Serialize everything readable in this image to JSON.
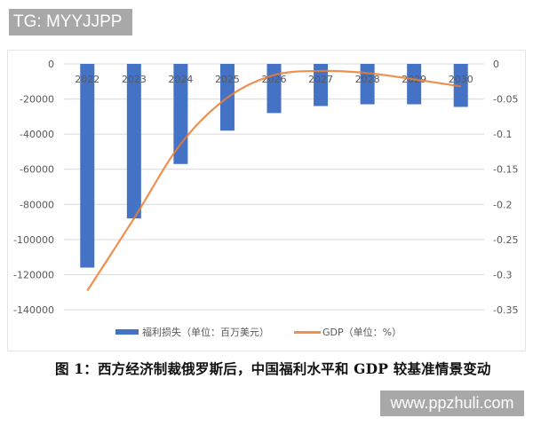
{
  "watermark_top": "TG: MYYJJPP",
  "watermark_bottom": "www.ppzhuli.com",
  "caption": "图 1：西方经济制裁俄罗斯后，中国福利水平和 GDP 较基准情景变动",
  "legend": {
    "bar_label": "福利损失（单位：百万美元）",
    "line_label": "GDP（单位：%）"
  },
  "colors": {
    "bar": "#4472c4",
    "line": "#ed7d31",
    "grid": "#d9d9d9",
    "axis_text": "#595959"
  },
  "chart_data": {
    "type": "bar+line",
    "title": "图 1：西方经济制裁俄罗斯后，中国福利水平和 GDP 较基准情景变动",
    "categories": [
      "2022",
      "2023",
      "2024",
      "2025",
      "2026",
      "2027",
      "2028",
      "2029",
      "2030"
    ],
    "series": [
      {
        "name": "福利损失（单位：百万美元）",
        "type": "bar",
        "axis": "left",
        "values": [
          -116000,
          -88000,
          -57000,
          -38000,
          -28000,
          -24000,
          -23000,
          -23000,
          -24500
        ]
      },
      {
        "name": "GDP（单位：%）",
        "type": "line",
        "axis": "right",
        "values": [
          -0.323,
          -0.22,
          -0.114,
          -0.048,
          -0.016,
          -0.01,
          -0.013,
          -0.022,
          -0.032
        ]
      }
    ],
    "y_left": {
      "ylim": [
        -140000,
        0
      ],
      "ticks": [
        "0",
        "-20000",
        "-40000",
        "-60000",
        "-80000",
        "-100000",
        "-120000",
        "-140000"
      ],
      "tick_values": [
        0,
        -20000,
        -40000,
        -60000,
        -80000,
        -100000,
        -120000,
        -140000
      ]
    },
    "y_right": {
      "ylim": [
        -0.35,
        0
      ],
      "ticks": [
        "0",
        "-0.05",
        "-0.1",
        "-0.15",
        "-0.2",
        "-0.25",
        "-0.3",
        "-0.35"
      ],
      "tick_values": [
        0,
        -0.05,
        -0.1,
        -0.15,
        -0.2,
        -0.25,
        -0.3,
        -0.35
      ]
    },
    "xlabel": "",
    "ylabel": "",
    "grid": true,
    "legend_position": "bottom"
  }
}
